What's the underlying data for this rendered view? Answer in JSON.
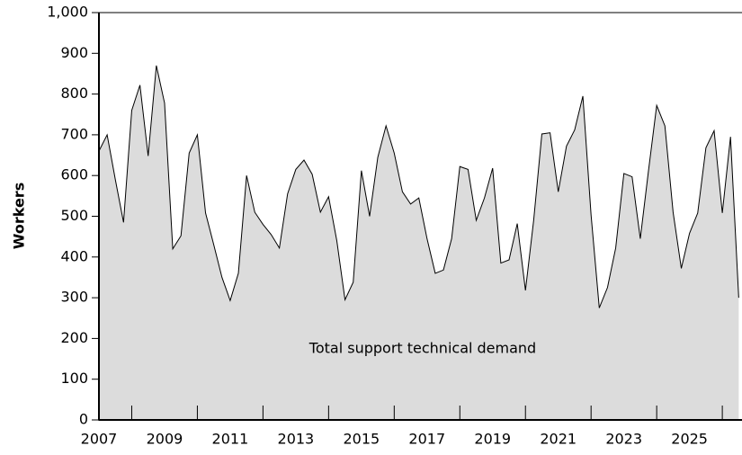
{
  "chart_data": {
    "type": "area",
    "ylabel": "Workers",
    "annotation": "Total support technical demand",
    "color": "#dcdcdc",
    "line_color": "#000000",
    "x": [
      2007,
      2007.25,
      2007.5,
      2007.75,
      2008,
      2008.25,
      2008.5,
      2008.75,
      2009,
      2009.25,
      2009.5,
      2009.75,
      2010,
      2010.25,
      2010.5,
      2010.75,
      2011,
      2011.25,
      2011.5,
      2011.75,
      2012,
      2012.25,
      2012.5,
      2012.75,
      2013,
      2013.25,
      2013.5,
      2013.75,
      2014,
      2014.25,
      2014.5,
      2014.75,
      2015,
      2015.25,
      2015.5,
      2015.75,
      2016,
      2016.25,
      2016.5,
      2016.75,
      2017,
      2017.25,
      2017.5,
      2017.75,
      2018,
      2018.25,
      2018.5,
      2018.75,
      2019,
      2019.25,
      2019.5,
      2019.75,
      2020,
      2020.25,
      2020.5,
      2020.75,
      2021,
      2021.25,
      2021.5,
      2021.75,
      2022,
      2022.25,
      2022.5,
      2022.75,
      2023,
      2023.25,
      2023.5,
      2023.75,
      2024,
      2024.25,
      2024.5,
      2024.75,
      2025,
      2025.25,
      2025.5,
      2025.75,
      2026,
      2026.25,
      2026.5
    ],
    "values": [
      660,
      700,
      590,
      485,
      760,
      822,
      648,
      870,
      778,
      420,
      452,
      655,
      700,
      508,
      430,
      350,
      293,
      360,
      600,
      510,
      480,
      455,
      422,
      555,
      615,
      638,
      603,
      510,
      548,
      440,
      295,
      338,
      612,
      500,
      645,
      722,
      655,
      560,
      530,
      545,
      445,
      360,
      368,
      445,
      622,
      615,
      490,
      545,
      618,
      385,
      393,
      482,
      318,
      490,
      702,
      705,
      560,
      672,
      712,
      795,
      503,
      275,
      325,
      422,
      605,
      597,
      445,
      612,
      772,
      722,
      510,
      372,
      458,
      508,
      668,
      710,
      508,
      695,
      300
    ],
    "xlim": [
      2007,
      2026.6
    ],
    "xticks": [
      2007,
      2009,
      2011,
      2013,
      2015,
      2017,
      2019,
      2021,
      2023,
      2025
    ],
    "xticks_minor": [
      2008,
      2010,
      2012,
      2014,
      2016,
      2018,
      2020,
      2022,
      2024,
      2026
    ],
    "ylim": [
      0,
      1000
    ],
    "yticks": [
      0,
      100,
      200,
      300,
      400,
      500,
      600,
      700,
      800,
      900,
      {
        "value": 1000,
        "label": "1,000"
      }
    ]
  }
}
